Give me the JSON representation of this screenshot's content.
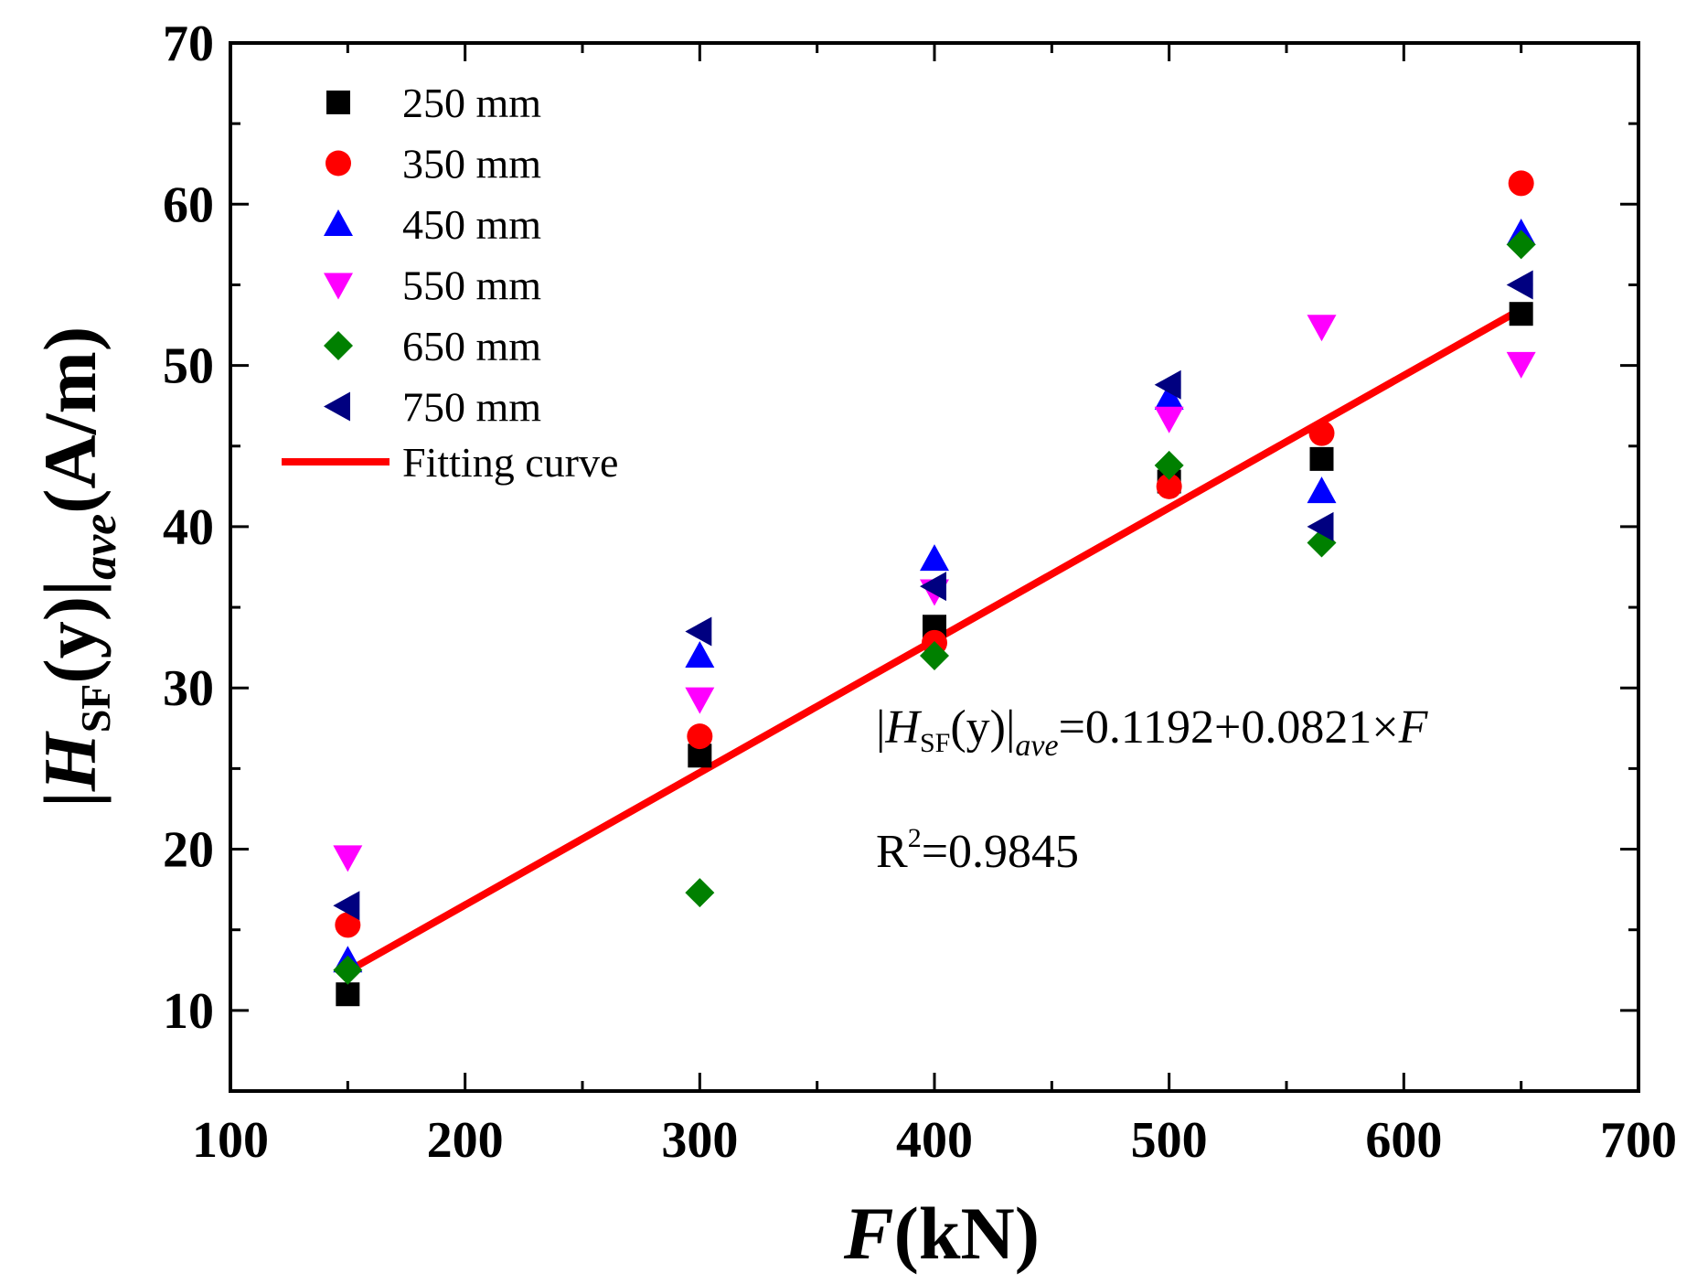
{
  "chart_data": {
    "type": "scatter",
    "title": "",
    "xlabel": {
      "var": "F",
      "unit": "(kN)"
    },
    "ylabel": {
      "pipe_left": "|",
      "var": "H",
      "sub": "SF",
      "arg": "(y)",
      "pipe_right": "|",
      "subscript": "ave",
      "unit": "(A/m)"
    },
    "xlim": [
      100,
      700
    ],
    "ylim": [
      5,
      70
    ],
    "x_ticks": [
      100,
      200,
      300,
      400,
      500,
      600,
      700
    ],
    "y_ticks": [
      10,
      20,
      30,
      40,
      50,
      60,
      70
    ],
    "legend_position": "top-left",
    "series": [
      {
        "name": "250 mm",
        "marker": "square",
        "color": "#000000",
        "x": [
          150,
          300,
          400,
          500,
          565,
          650
        ],
        "y": [
          11.0,
          25.8,
          33.8,
          42.8,
          44.2,
          53.2
        ]
      },
      {
        "name": "350 mm",
        "marker": "circle",
        "color": "#ff0000",
        "x": [
          150,
          300,
          400,
          500,
          565,
          650
        ],
        "y": [
          15.3,
          27.0,
          32.8,
          42.5,
          45.8,
          61.3
        ]
      },
      {
        "name": "450 mm",
        "marker": "triangle-up",
        "color": "#0000ff",
        "x": [
          150,
          300,
          400,
          500,
          565,
          650
        ],
        "y": [
          13.1,
          32.0,
          38.0,
          48.0,
          42.2,
          58.2
        ]
      },
      {
        "name": "550 mm",
        "marker": "triangle-down",
        "color": "#ff00ff",
        "x": [
          150,
          300,
          400,
          500,
          565,
          650
        ],
        "y": [
          19.5,
          29.3,
          36.0,
          46.7,
          52.4,
          50.1
        ]
      },
      {
        "name": "650 mm",
        "marker": "diamond",
        "color": "#008000",
        "x": [
          150,
          300,
          400,
          500,
          565,
          650
        ],
        "y": [
          12.5,
          17.3,
          32.0,
          43.8,
          39.0,
          57.5
        ]
      },
      {
        "name": "750 mm",
        "marker": "triangle-left",
        "color": "#000080",
        "x": [
          150,
          300,
          400,
          500,
          565,
          650
        ],
        "y": [
          16.5,
          33.5,
          36.3,
          48.8,
          40.0,
          55.0
        ]
      }
    ],
    "fit": {
      "name": "Fitting curve",
      "color": "#ff0000",
      "intercept": 0.1192,
      "slope": 0.0821,
      "x_range": [
        150,
        650
      ],
      "equation": {
        "pipe_left": "|",
        "var": "H",
        "sub": "SF",
        "arg": "(y)",
        "pipe_right": "|",
        "subscript": "ave",
        "rhs": "=0.1192+0.0821×",
        "rhs_var": "F"
      },
      "r2": {
        "base": "R",
        "sup": "2",
        "rhs": "=0.9845"
      }
    }
  }
}
